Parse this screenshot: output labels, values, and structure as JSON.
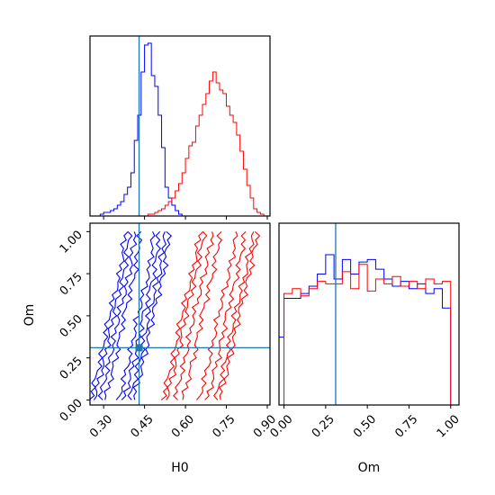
{
  "chart_data": {
    "type": "corner",
    "parameters": [
      "H0",
      "Om"
    ],
    "truth": {
      "H0": 0.43,
      "Om": 0.31
    },
    "colors": {
      "series_1": "#0000ff",
      "series_2": "#ff0000",
      "truth": "#1f77b4"
    },
    "axes": {
      "H0": {
        "label": "H0",
        "range": [
          0.25,
          0.91
        ],
        "ticks": [
          "0.30",
          "0.45",
          "0.60",
          "0.75",
          "0.90"
        ]
      },
      "Om": {
        "label": "Om",
        "range": [
          -0.03,
          1.05
        ],
        "ticks": [
          "0.00",
          "0.25",
          "0.50",
          "0.75",
          "1.00"
        ]
      }
    },
    "panels": [
      {
        "id": "H0-marginal",
        "type": "histogram",
        "parameter": "H0",
        "series": [
          {
            "color": "#0000ff",
            "bins": [
              0.25,
              0.2625,
              0.275,
              0.2875,
              0.3,
              0.3125,
              0.325,
              0.3375,
              0.35,
              0.3625,
              0.375,
              0.3875,
              0.4,
              0.4125,
              0.425,
              0.4375,
              0.45,
              0.4625,
              0.475,
              0.4875,
              0.5,
              0.5125,
              0.525,
              0.5375,
              0.55,
              0.5625,
              0.575,
              0.5875,
              0.6
            ],
            "counts": [
              0,
              0,
              0,
              0.01,
              0.02,
              0.02,
              0.03,
              0.04,
              0.06,
              0.08,
              0.12,
              0.16,
              0.24,
              0.42,
              0.56,
              0.8,
              0.95,
              0.96,
              0.78,
              0.72,
              0.56,
              0.38,
              0.16,
              0.1,
              0.06,
              0.03,
              0.01,
              0
            ]
          },
          {
            "color": "#ff0000",
            "bins": [
              0.45,
              0.4625,
              0.475,
              0.4875,
              0.5,
              0.5125,
              0.525,
              0.5375,
              0.55,
              0.5625,
              0.575,
              0.5875,
              0.6,
              0.6125,
              0.625,
              0.6375,
              0.65,
              0.6625,
              0.675,
              0.6875,
              0.7,
              0.7125,
              0.725,
              0.7375,
              0.75,
              0.7625,
              0.775,
              0.7875,
              0.8,
              0.8125,
              0.825,
              0.8375,
              0.85,
              0.8625,
              0.875,
              0.8875,
              0.9
            ],
            "counts": [
              0,
              0.01,
              0.01,
              0.02,
              0.03,
              0.04,
              0.06,
              0.08,
              0.1,
              0.14,
              0.18,
              0.24,
              0.32,
              0.39,
              0.41,
              0.5,
              0.56,
              0.62,
              0.68,
              0.75,
              0.8,
              0.74,
              0.7,
              0.68,
              0.61,
              0.56,
              0.52,
              0.45,
              0.36,
              0.26,
              0.17,
              0.1,
              0.04,
              0.02,
              0.01,
              0
            ]
          }
        ]
      },
      {
        "id": "Om-marginal",
        "type": "histogram",
        "parameter": "Om",
        "series": [
          {
            "color": "#0000ff",
            "bins": [
              -0.03,
              0.0,
              0.05,
              0.1,
              0.15,
              0.2,
              0.25,
              0.3,
              0.35,
              0.4,
              0.45,
              0.5,
              0.55,
              0.6,
              0.65,
              0.7,
              0.75,
              0.8,
              0.85,
              0.9,
              0.95,
              1.0,
              1.05
            ],
            "counts": [
              0.28,
              0.44,
              0.44,
              0.46,
              0.49,
              0.54,
              0.62,
              0.52,
              0.6,
              0.54,
              0.59,
              0.6,
              0.56,
              0.52,
              0.49,
              0.51,
              0.48,
              0.5,
              0.46,
              0.48,
              0.4,
              0.0
            ]
          },
          {
            "color": "#ff0000",
            "bins": [
              0.0,
              0.05,
              0.1,
              0.15,
              0.2,
              0.25,
              0.3,
              0.35,
              0.4,
              0.45,
              0.5,
              0.55,
              0.6,
              0.65,
              0.7,
              0.75,
              0.8,
              0.85,
              0.9,
              0.95,
              1.0
            ],
            "counts": [
              0.46,
              0.48,
              0.45,
              0.48,
              0.51,
              0.5,
              0.5,
              0.55,
              0.48,
              0.58,
              0.47,
              0.52,
              0.5,
              0.53,
              0.49,
              0.51,
              0.48,
              0.52,
              0.5,
              0.51
            ]
          }
        ]
      },
      {
        "id": "H0-Om-joint",
        "type": "contour",
        "x": "H0",
        "y": "Om",
        "series": [
          {
            "color": "#0000ff",
            "centers": [
              [
                0.33,
                0.0
              ],
              [
                0.37,
                0.25
              ],
              [
                0.4,
                0.5
              ],
              [
                0.44,
                0.75
              ],
              [
                0.46,
                1.0
              ]
            ],
            "half_widths": [
              0.025,
              0.045,
              0.065,
              0.08
            ]
          },
          {
            "color": "#ff0000",
            "centers": [
              [
                0.62,
                0.0
              ],
              [
                0.66,
                0.25
              ],
              [
                0.69,
                0.5
              ],
              [
                0.73,
                0.75
              ],
              [
                0.76,
                1.0
              ]
            ],
            "half_widths": [
              0.03,
              0.06,
              0.09,
              0.105
            ]
          }
        ]
      }
    ]
  }
}
